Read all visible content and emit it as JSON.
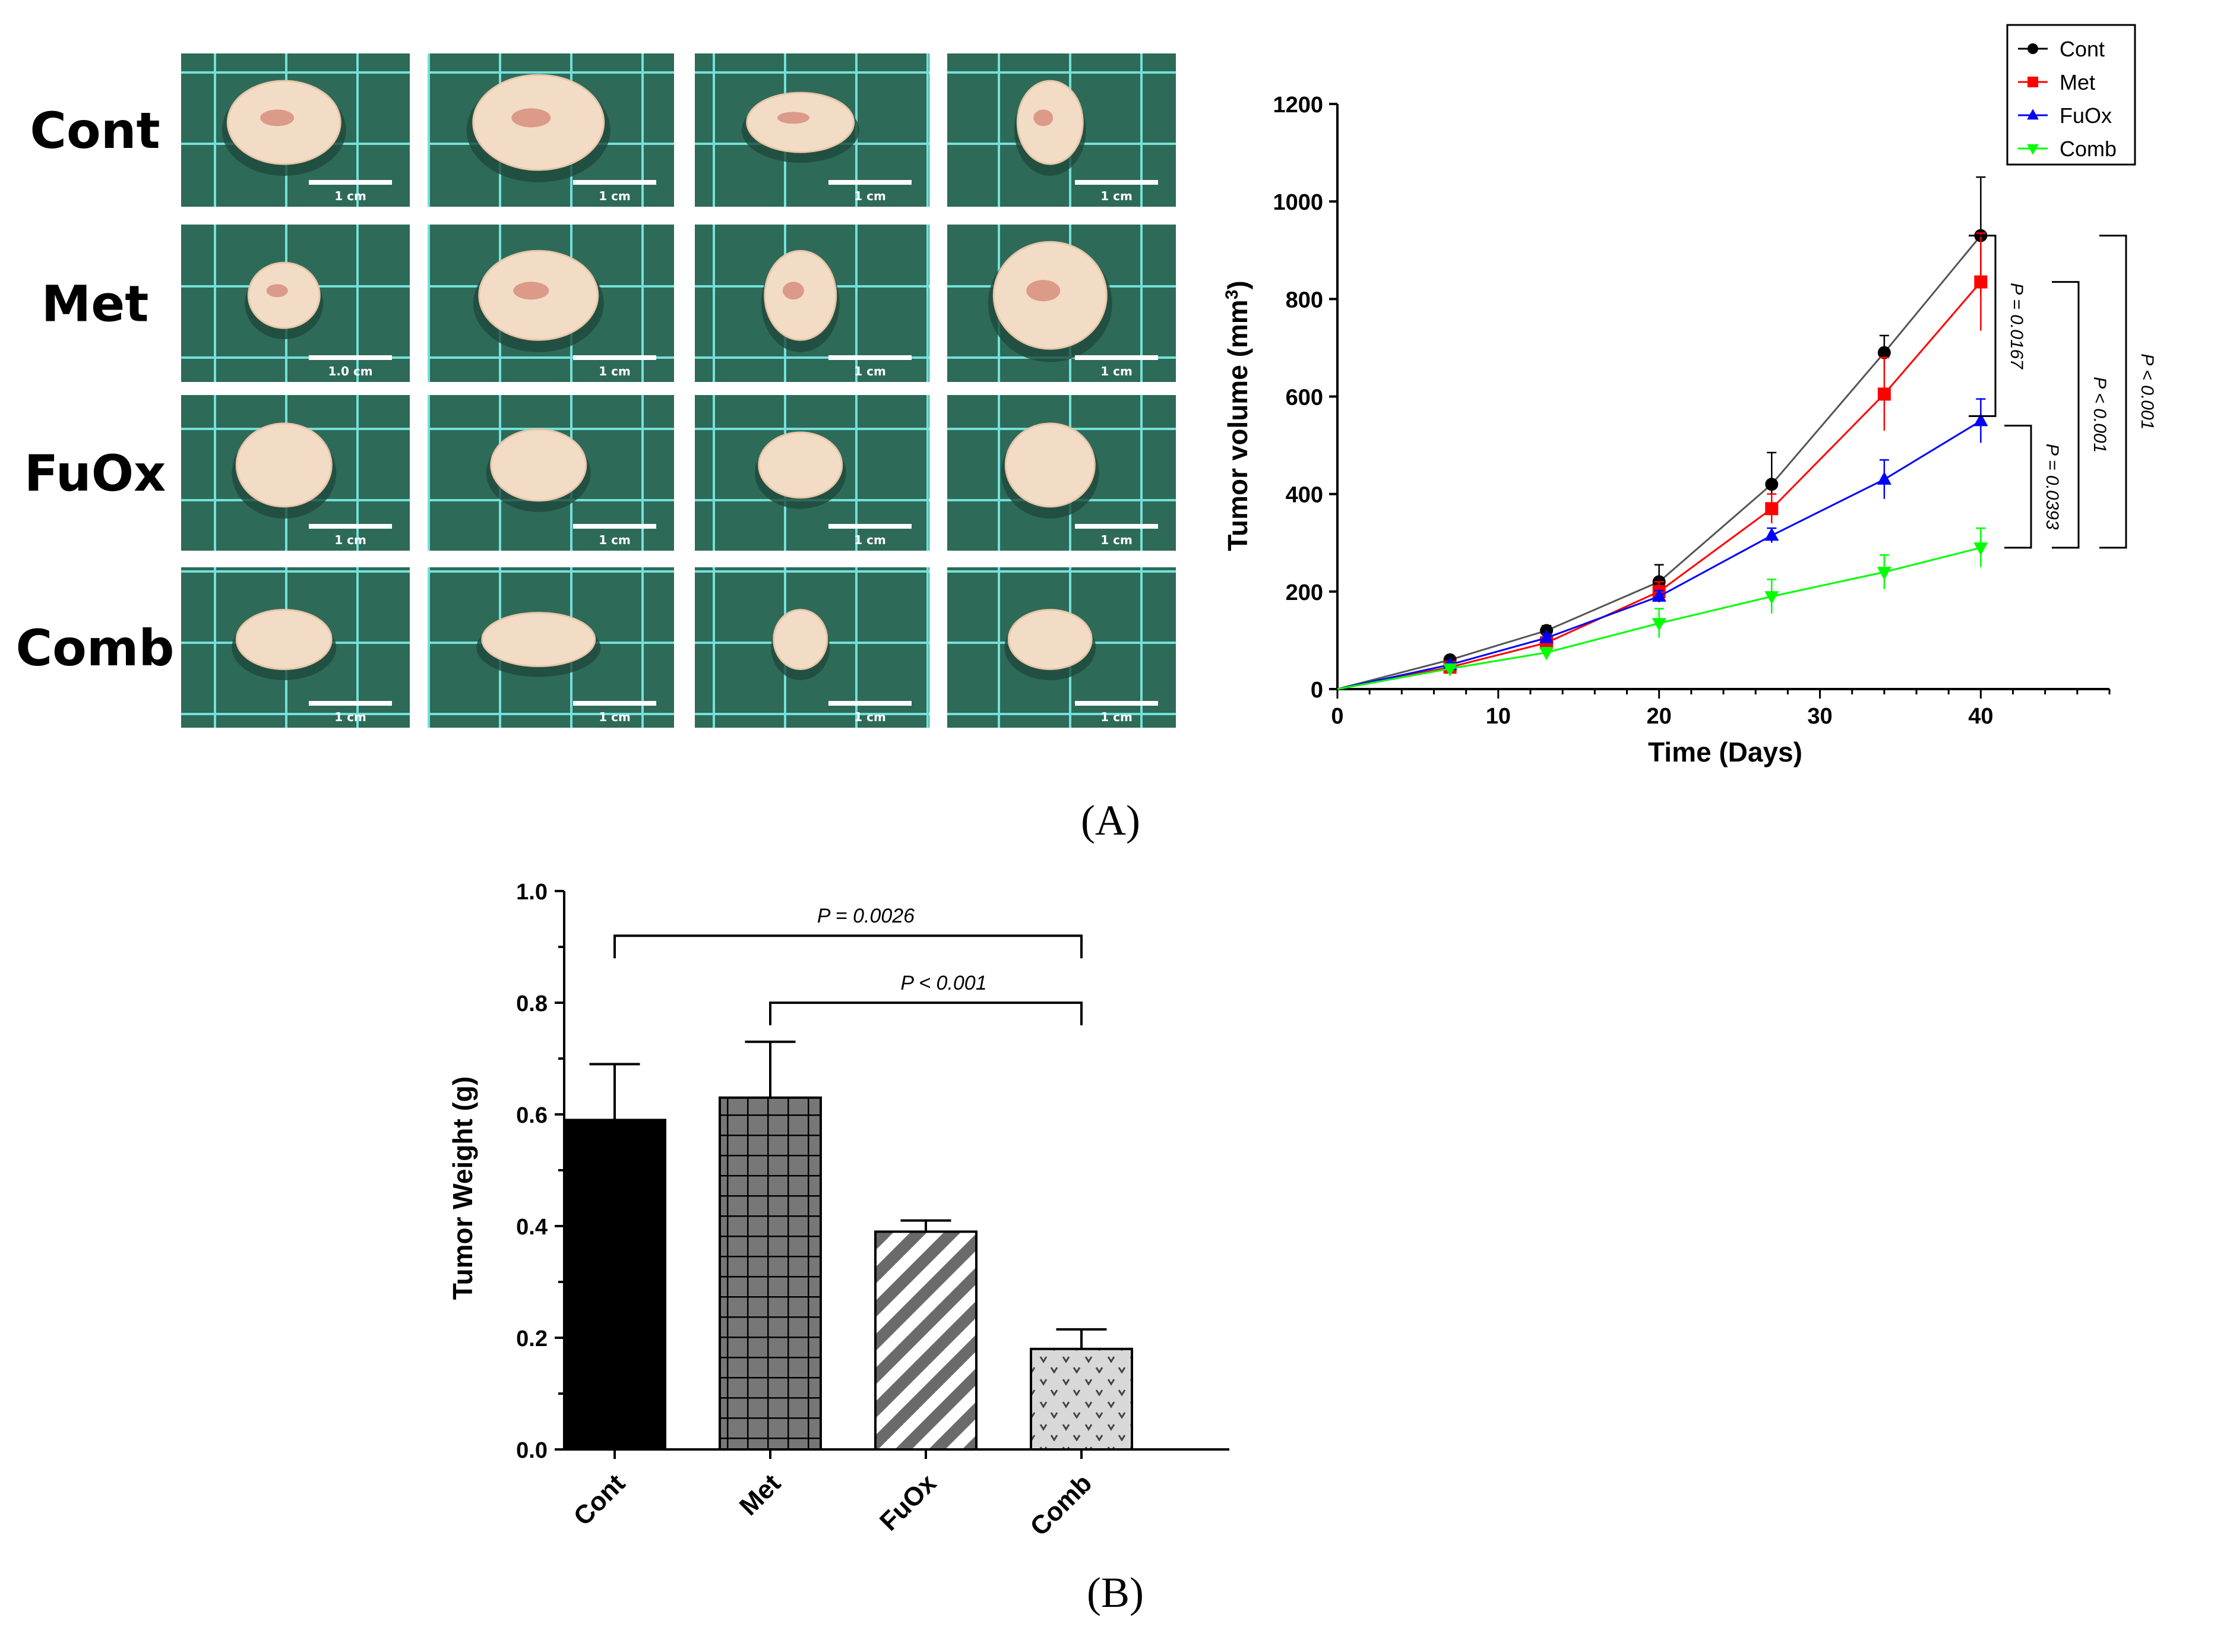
{
  "figure": {
    "label_a": "(A)",
    "label_b": "(B)"
  },
  "photo_grid": {
    "rows": [
      {
        "label": "Cont",
        "scale_labels": [
          "1 cm",
          "1 cm",
          "1 cm",
          "1 cm"
        ]
      },
      {
        "label": "Met",
        "scale_labels": [
          "1.0 cm",
          "1 cm",
          "1 cm",
          "1 cm"
        ]
      },
      {
        "label": "FuOx",
        "scale_labels": [
          "1 cm",
          "1 cm",
          "1 cm",
          "1 cm"
        ]
      },
      {
        "label": "Comb",
        "scale_labels": [
          "1 cm",
          "1 cm",
          "1 cm",
          "1 cm"
        ]
      }
    ],
    "colors": {
      "background": "#2e6a58",
      "grid": "#74e0da",
      "tumor": "#f3dcc6",
      "blood": "#c24a3e"
    }
  },
  "chart_data": [
    {
      "type": "line",
      "xlabel": "Time (Days)",
      "ylabel": "Tumor volume (mm",
      "ylabel_sup": "3",
      "ylabel_end": ")",
      "xlim": [
        0,
        48
      ],
      "ylim": [
        0,
        1200
      ],
      "xticks": [
        0,
        10,
        20,
        30,
        40
      ],
      "yticks": [
        0,
        200,
        400,
        600,
        800,
        1000,
        1200
      ],
      "x": [
        0,
        7,
        13,
        20,
        27,
        34,
        40
      ],
      "series": [
        {
          "name": "Cont",
          "color": "#000000",
          "marker": "circle",
          "values": [
            0,
            60,
            120,
            220,
            420,
            690,
            930
          ],
          "errors": [
            0,
            8,
            10,
            35,
            65,
            35,
            120
          ]
        },
        {
          "name": "Met",
          "color": "#ff0000",
          "marker": "square",
          "values": [
            0,
            45,
            95,
            200,
            370,
            605,
            835
          ],
          "errors": [
            0,
            6,
            10,
            20,
            30,
            75,
            100
          ]
        },
        {
          "name": "FuOx",
          "color": "#0000ff",
          "marker": "triangle-up",
          "values": [
            0,
            50,
            105,
            190,
            315,
            430,
            550
          ],
          "errors": [
            0,
            5,
            8,
            12,
            15,
            40,
            45
          ]
        },
        {
          "name": "Comb",
          "color": "#00ff00",
          "marker": "triangle-down",
          "values": [
            0,
            42,
            75,
            135,
            190,
            240,
            290
          ],
          "errors": [
            0,
            6,
            10,
            30,
            35,
            35,
            40
          ]
        }
      ],
      "significance": [
        {
          "label": "P = 0.0167",
          "from": "Cont",
          "to": "FuOx"
        },
        {
          "label": "P = 0.0393",
          "from": "FuOx",
          "to": "Comb"
        },
        {
          "label": "P < 0.001",
          "from": "Met",
          "to": "Comb"
        },
        {
          "label": "P < 0.001",
          "from": "Cont",
          "to": "Comb"
        }
      ],
      "legend": "top-right"
    },
    {
      "type": "bar",
      "ylabel": "Tumor  Weight (g)",
      "ylim": [
        0,
        1.0
      ],
      "yticks": [
        "0.0",
        "0.2",
        "0.4",
        "0.6",
        "0.8",
        "1.0"
      ],
      "categories": [
        "Cont",
        "Met",
        "FuOx",
        "Comb"
      ],
      "values": [
        0.59,
        0.63,
        0.39,
        0.18
      ],
      "errors": [
        0.1,
        0.1,
        0.02,
        0.035
      ],
      "patterns": [
        "solid",
        "grid",
        "diagonal",
        "dots"
      ],
      "significance": [
        {
          "label": "P = 0.0026",
          "from": "Cont",
          "to": "Comb"
        },
        {
          "label": "P < 0.001",
          "from": "Met",
          "to": "Comb"
        }
      ]
    }
  ]
}
